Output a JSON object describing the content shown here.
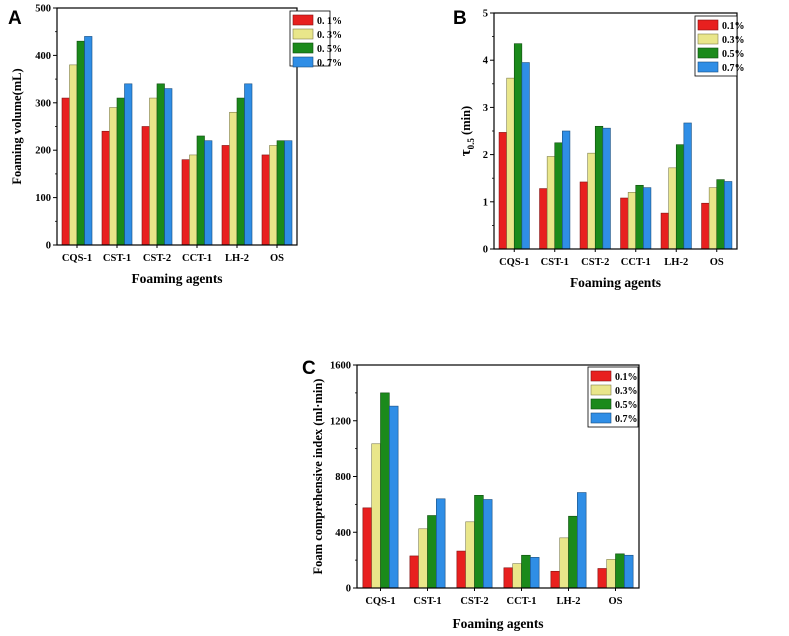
{
  "chart_data": [
    {
      "type": "bar",
      "panel": "A",
      "categories": [
        "CQS-1",
        "CST-1",
        "CST-2",
        "CCT-1",
        "LH-2",
        "OS"
      ],
      "series": [
        {
          "name": "0. 1%",
          "color": "#e8201f",
          "values": [
            310,
            240,
            250,
            180,
            210,
            190
          ]
        },
        {
          "name": "0. 3%",
          "color": "#e9e68a",
          "values": [
            380,
            290,
            310,
            190,
            280,
            210
          ]
        },
        {
          "name": "0. 5%",
          "color": "#1b8a1b",
          "values": [
            430,
            310,
            340,
            230,
            310,
            220
          ]
        },
        {
          "name": "0. 7%",
          "color": "#2f8ee6",
          "values": [
            440,
            340,
            330,
            220,
            340,
            220
          ]
        }
      ],
      "ylabel": "Foaming volume(mL)",
      "xlabel": "Foaming agents",
      "ylim": [
        0,
        500
      ],
      "yticks": [
        "0",
        "100",
        "200",
        "300",
        "400",
        "500"
      ],
      "legend": "top-right"
    },
    {
      "type": "bar",
      "panel": "B",
      "categories": [
        "CQS-1",
        "CST-1",
        "CST-2",
        "CCT-1",
        "LH-2",
        "OS"
      ],
      "series": [
        {
          "name": "0.1%",
          "color": "#e8201f",
          "values": [
            2.47,
            1.28,
            1.42,
            1.08,
            0.76,
            0.97
          ]
        },
        {
          "name": "0.3%",
          "color": "#e9e68a",
          "values": [
            3.62,
            1.96,
            2.03,
            1.2,
            1.72,
            1.3
          ]
        },
        {
          "name": "0.5%",
          "color": "#1b8a1b",
          "values": [
            4.35,
            2.25,
            2.6,
            1.35,
            2.21,
            1.47
          ]
        },
        {
          "name": "0.7%",
          "color": "#2f8ee6",
          "values": [
            3.95,
            2.5,
            2.56,
            1.3,
            2.67,
            1.43
          ]
        }
      ],
      "ylabel": "τ",
      "ylabel_sub": "0.5",
      "ylabel_rest": " (min)",
      "xlabel": "Foaming agents",
      "ylim": [
        0,
        5
      ],
      "yticks": [
        "0",
        "1",
        "2",
        "3",
        "4",
        "5"
      ],
      "legend": "top-right"
    },
    {
      "type": "bar",
      "panel": "C",
      "categories": [
        "CQS-1",
        "CST-1",
        "CST-2",
        "CCT-1",
        "LH-2",
        "OS"
      ],
      "series": [
        {
          "name": "0.1%",
          "color": "#e8201f",
          "values": [
            575,
            230,
            265,
            145,
            120,
            140
          ]
        },
        {
          "name": "0.3%",
          "color": "#e9e68a",
          "values": [
            1035,
            425,
            475,
            175,
            360,
            205
          ]
        },
        {
          "name": "0.5%",
          "color": "#1b8a1b",
          "values": [
            1400,
            520,
            665,
            235,
            515,
            245
          ]
        },
        {
          "name": "0.7%",
          "color": "#2f8ee6",
          "values": [
            1305,
            640,
            635,
            220,
            685,
            235
          ]
        }
      ],
      "ylabel": "Foam comprehensive index (ml·min)",
      "xlabel": "Foaming agents",
      "ylim": [
        0,
        1600
      ],
      "yticks": [
        "0",
        "400",
        "800",
        "1200",
        "1600"
      ],
      "legend": "top-right"
    }
  ]
}
